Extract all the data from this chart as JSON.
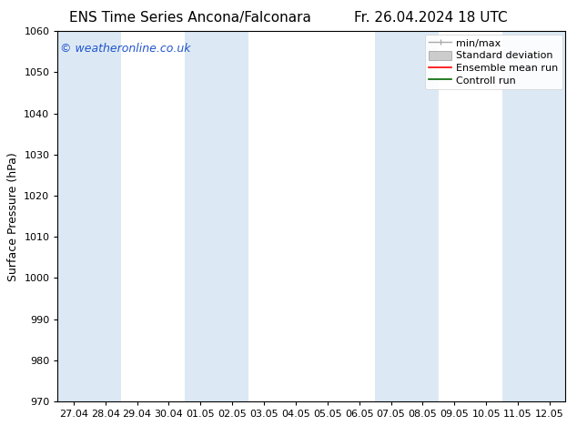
{
  "title_left": "ENS Time Series Ancona/Falconara",
  "title_right": "Fr. 26.04.2024 18 UTC",
  "ylabel": "Surface Pressure (hPa)",
  "watermark": "© weatheronline.co.uk",
  "watermark_color": "#2255cc",
  "ylim": [
    970,
    1060
  ],
  "yticks": [
    970,
    980,
    990,
    1000,
    1010,
    1020,
    1030,
    1040,
    1050,
    1060
  ],
  "xtick_labels": [
    "27.04",
    "28.04",
    "29.04",
    "30.04",
    "01.05",
    "02.05",
    "03.05",
    "04.05",
    "05.05",
    "06.05",
    "07.05",
    "08.05",
    "09.05",
    "10.05",
    "11.05",
    "12.05"
  ],
  "shade_color": "#dce9f5",
  "bg_color": "#ffffff",
  "title_fontsize": 11,
  "axis_label_fontsize": 9,
  "tick_fontsize": 8,
  "watermark_fontsize": 9,
  "legend_fontsize": 8
}
